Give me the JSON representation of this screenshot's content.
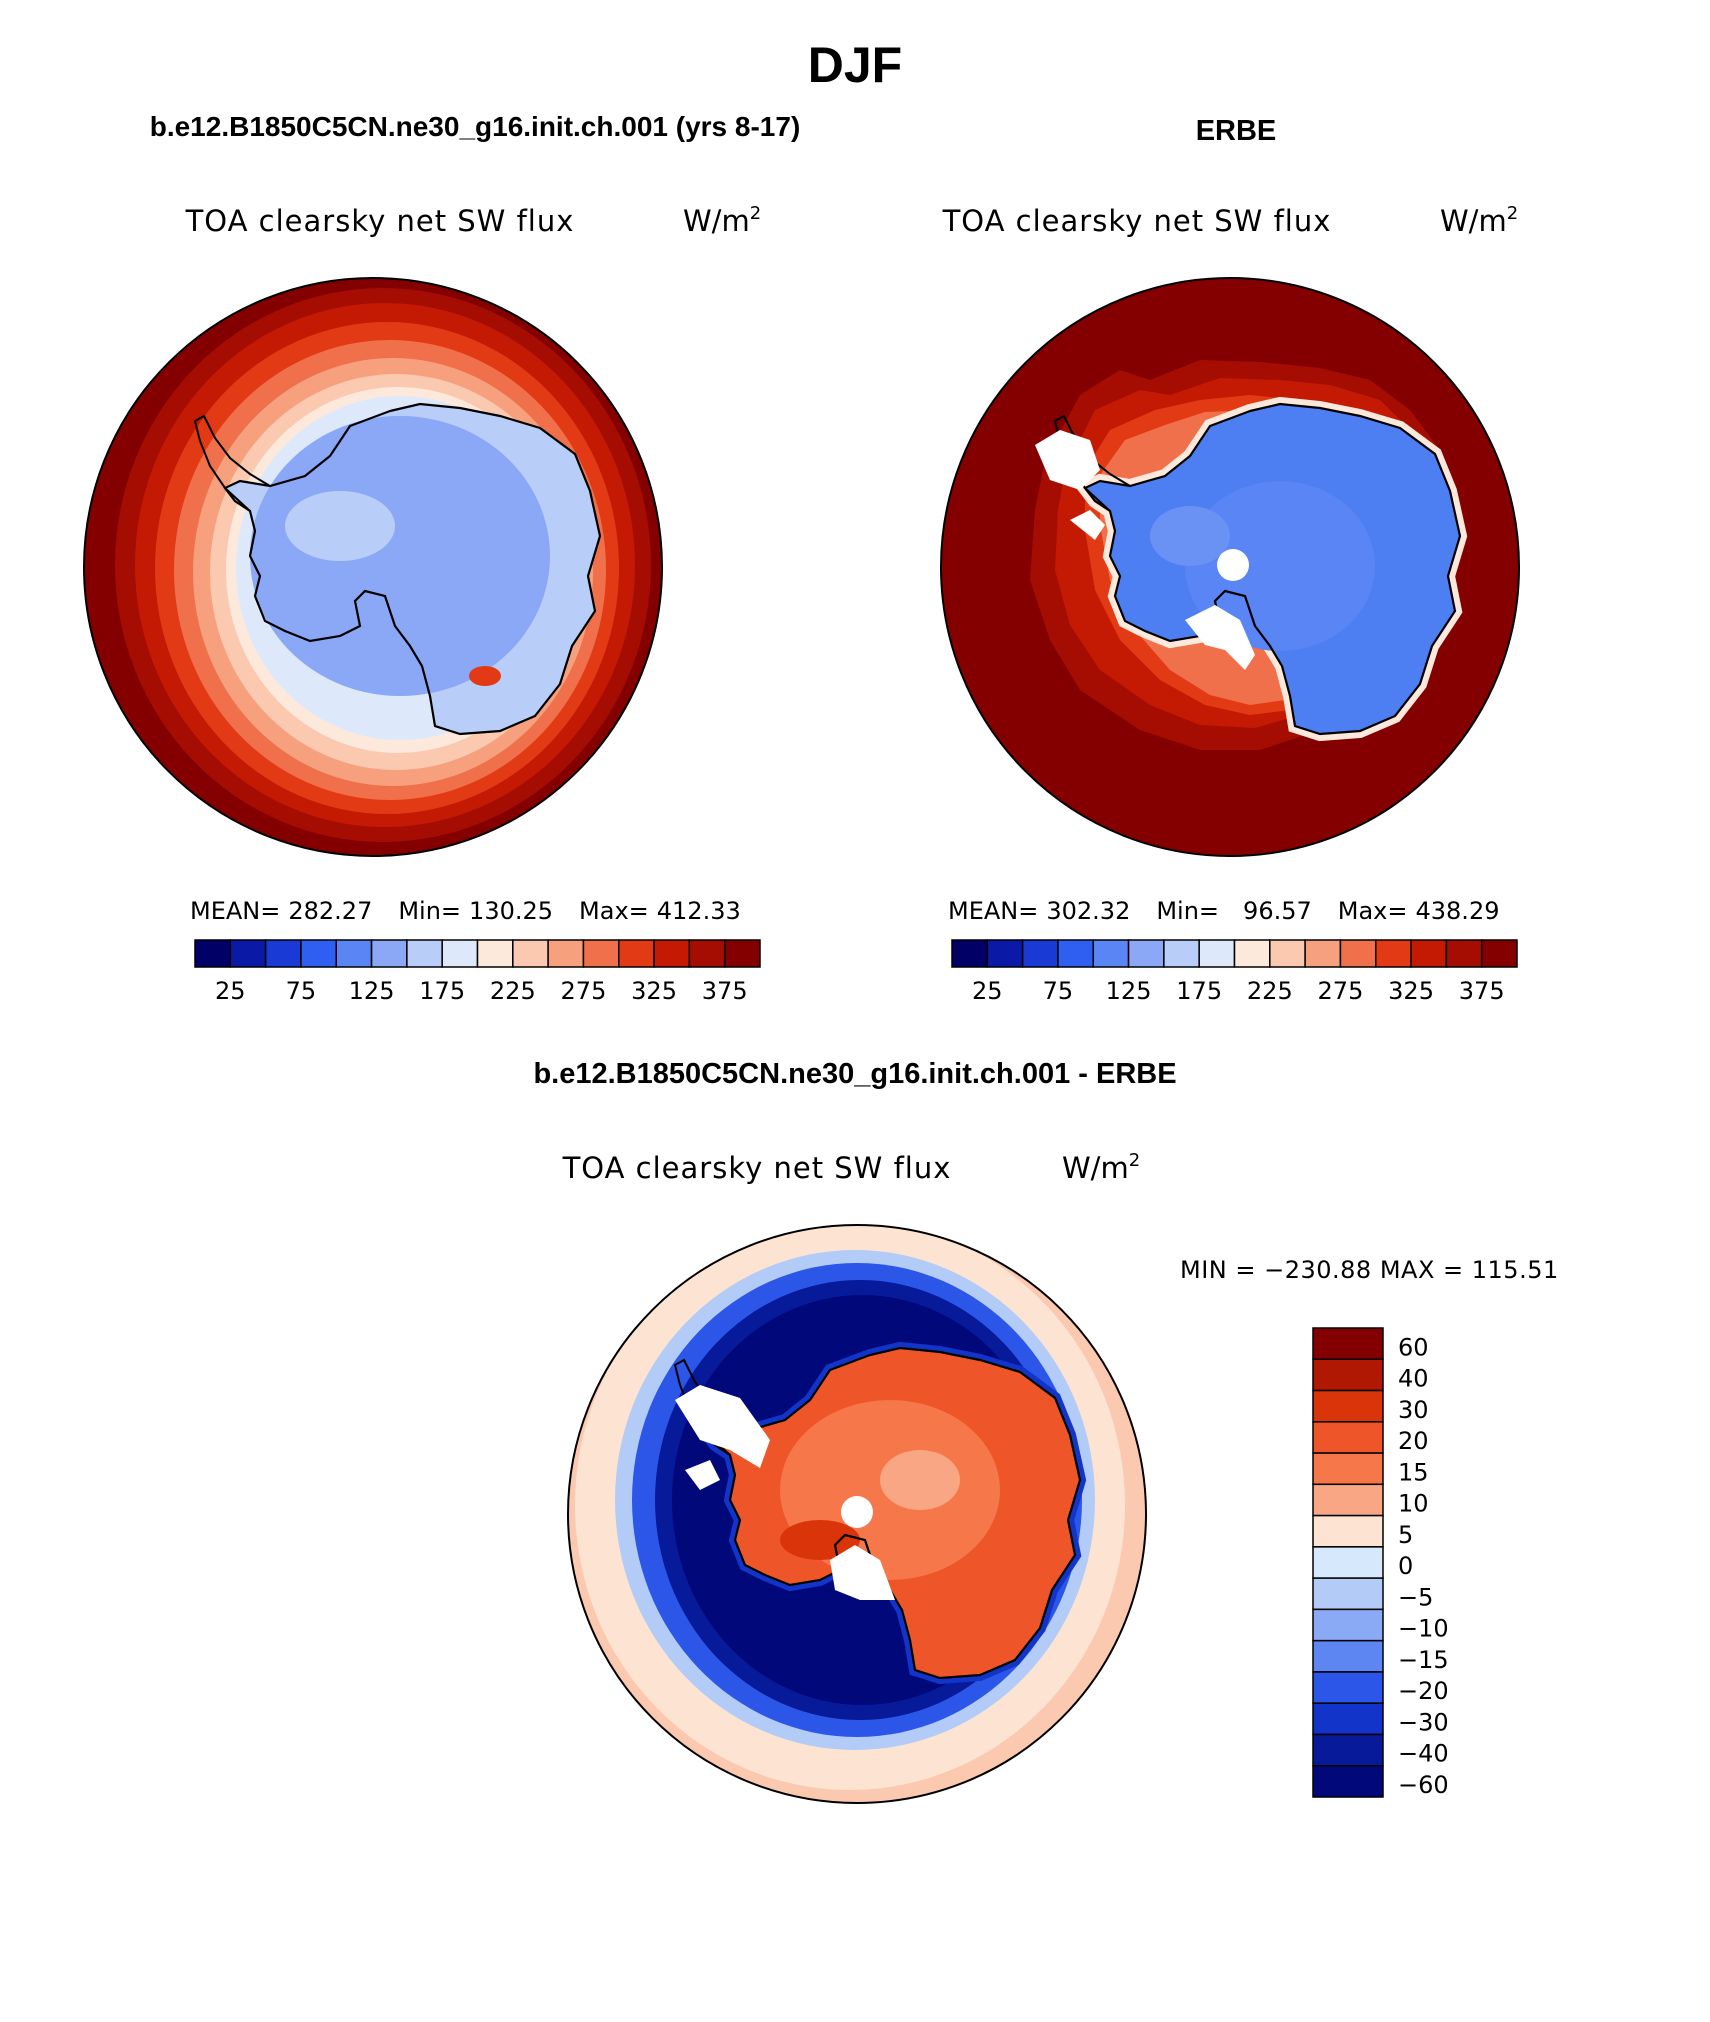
{
  "page_title": "DJF",
  "panels": [
    {
      "heading": "b.e12.B1850C5CN.ne30_g16.init.ch.001 (yrs 8-17)",
      "variable": "TOA clearsky net SW flux",
      "units": "W/m",
      "units_exponent": "2",
      "stats": {
        "mean_label": "MEAN=",
        "mean": "282.27",
        "min_label": "Min=",
        "min": "130.25",
        "max_label": "Max=",
        "max": "412.33"
      },
      "pole_hole": false
    },
    {
      "heading": "ERBE",
      "variable": "TOA clearsky net SW flux",
      "units": "W/m",
      "units_exponent": "2",
      "stats": {
        "mean_label": "MEAN=",
        "mean": "302.32",
        "min_label": "Min=",
        "min": "96.57",
        "max_label": "Max=",
        "max": "438.29"
      },
      "pole_hole": true
    }
  ],
  "abs_colorbar": {
    "colors": [
      "#000066",
      "#0a19a6",
      "#1a3ad6",
      "#2f5ff0",
      "#5a85f5",
      "#8aa8f5",
      "#b8cdf7",
      "#dde9fb",
      "#fde8dc",
      "#fbc8b0",
      "#f7a07e",
      "#f0704b",
      "#e23a14",
      "#c41a04",
      "#a60d02",
      "#840000"
    ],
    "tick_labels": [
      "25",
      "75",
      "125",
      "175",
      "225",
      "275",
      "325",
      "375"
    ]
  },
  "diff_panel": {
    "heading": "b.e12.B1850C5CN.ne30_g16.init.ch.001 - ERBE",
    "variable": "TOA clearsky net SW flux",
    "units": "W/m",
    "units_exponent": "2",
    "min_max_text": "MIN = −230.88 MAX = 115.51",
    "colorbar": {
      "colors": [
        "#840000",
        "#b01804",
        "#da340a",
        "#ee5528",
        "#f6774a",
        "#f9a684",
        "#fde4d2",
        "#d6e8fb",
        "#b2cbf7",
        "#8aaaf5",
        "#5d86f3",
        "#2b56e8",
        "#1234c8",
        "#061a9a",
        "#00087a"
      ],
      "tick_labels": [
        "60",
        "40",
        "30",
        "20",
        "15",
        "10",
        "5",
        "0",
        "−5",
        "−10",
        "−15",
        "−20",
        "−30",
        "−40",
        "−60"
      ]
    }
  }
}
